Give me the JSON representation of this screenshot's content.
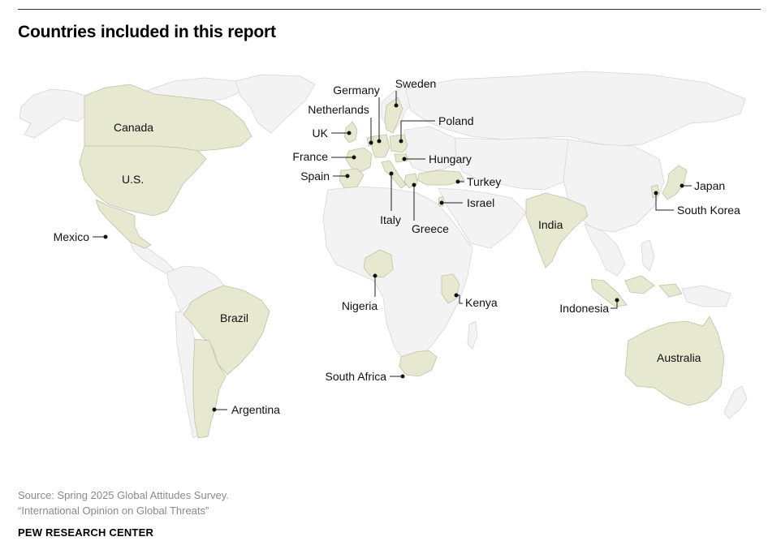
{
  "title": "Countries included in this report",
  "source_line1": "Source: Spring 2025 Global Attitudes Survey.",
  "source_line2": "“International Opinion on Global Threats”",
  "brand": "PEW RESEARCH CENTER",
  "colors": {
    "included": "#e6e8d0",
    "other_land": "#f3f3f3",
    "border": "#d6d6d6",
    "leader": "#222222"
  },
  "countries": {
    "canada": "Canada",
    "us": "U.S.",
    "mexico": "Mexico",
    "brazil": "Brazil",
    "argentina": "Argentina",
    "uk": "UK",
    "netherlands": "Netherlands",
    "germany": "Germany",
    "sweden": "Sweden",
    "poland": "Poland",
    "france": "France",
    "hungary": "Hungary",
    "spain": "Spain",
    "italy": "Italy",
    "greece": "Greece",
    "turkey": "Turkey",
    "israel": "Israel",
    "nigeria": "Nigeria",
    "kenya": "Kenya",
    "south_africa": "South Africa",
    "india": "India",
    "indonesia": "Indonesia",
    "japan": "Japan",
    "south_korea": "South Korea",
    "australia": "Australia"
  }
}
